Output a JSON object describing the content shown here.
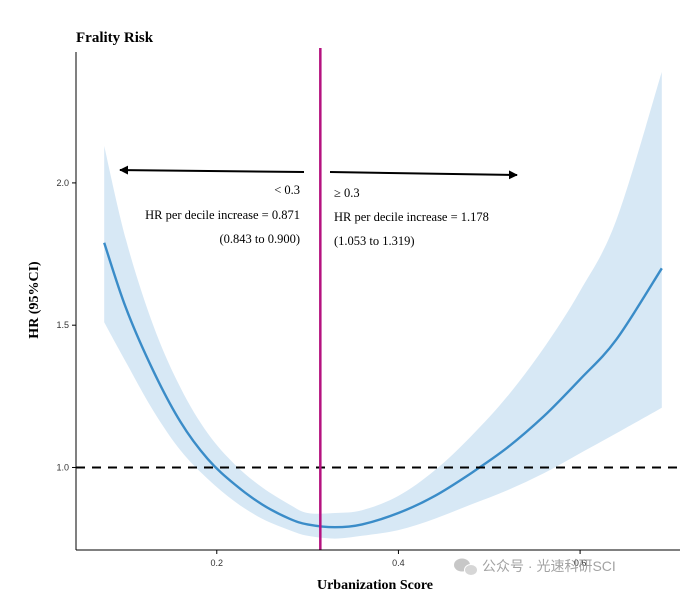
{
  "chart_data": {
    "type": "line",
    "title": "Frality Risk",
    "xlabel": "Urbanization Score",
    "ylabel": "HR (95%CI)",
    "xlim": [
      0.045,
      0.71
    ],
    "ylim": [
      0.71,
      2.46
    ],
    "x_ticks": [
      "0.2",
      "0.4",
      "0.6"
    ],
    "x_tick_values": [
      0.2,
      0.4,
      0.6
    ],
    "y_ticks": [
      "1.0",
      "1.5",
      "2.0"
    ],
    "y_tick_values": [
      1.0,
      1.5,
      2.0
    ],
    "grid": false,
    "series": [
      {
        "x": [
          0.076,
          0.1,
          0.13,
          0.16,
          0.19,
          0.22,
          0.25,
          0.28,
          0.3,
          0.33,
          0.36,
          0.4,
          0.44,
          0.48,
          0.52,
          0.56,
          0.6,
          0.64,
          0.69
        ],
        "y": [
          1.79,
          1.56,
          1.34,
          1.16,
          1.03,
          0.94,
          0.87,
          0.82,
          0.8,
          0.79,
          0.8,
          0.84,
          0.9,
          0.98,
          1.07,
          1.18,
          1.31,
          1.45,
          1.7
        ],
        "lower": [
          1.51,
          1.37,
          1.2,
          1.06,
          0.96,
          0.88,
          0.82,
          0.78,
          0.76,
          0.75,
          0.76,
          0.78,
          0.82,
          0.87,
          0.92,
          0.98,
          1.05,
          1.12,
          1.21
        ],
        "upper": [
          2.13,
          1.8,
          1.5,
          1.28,
          1.12,
          1.01,
          0.93,
          0.87,
          0.84,
          0.84,
          0.85,
          0.9,
          0.99,
          1.11,
          1.25,
          1.42,
          1.62,
          1.87,
          2.39
        ],
        "color": "#3a8cc8",
        "band_color": "#cfe3f3"
      }
    ],
    "reference_line": {
      "y": 1.0,
      "style": "dashed",
      "color": "#000000"
    },
    "cutoff_line": {
      "x": 0.314,
      "color": "#b5127f"
    },
    "annotations": {
      "left_label": "< 0.3",
      "left_text": "HR per decile increase = 0.871",
      "left_ci": "(0.843 to 0.900)",
      "right_label": "≥ 0.3",
      "right_text": "HR per decile increase = 1.178",
      "right_ci": "(1.053 to 1.319)"
    }
  },
  "watermark": {
    "text": "公众号 · 光速科研SCI"
  }
}
